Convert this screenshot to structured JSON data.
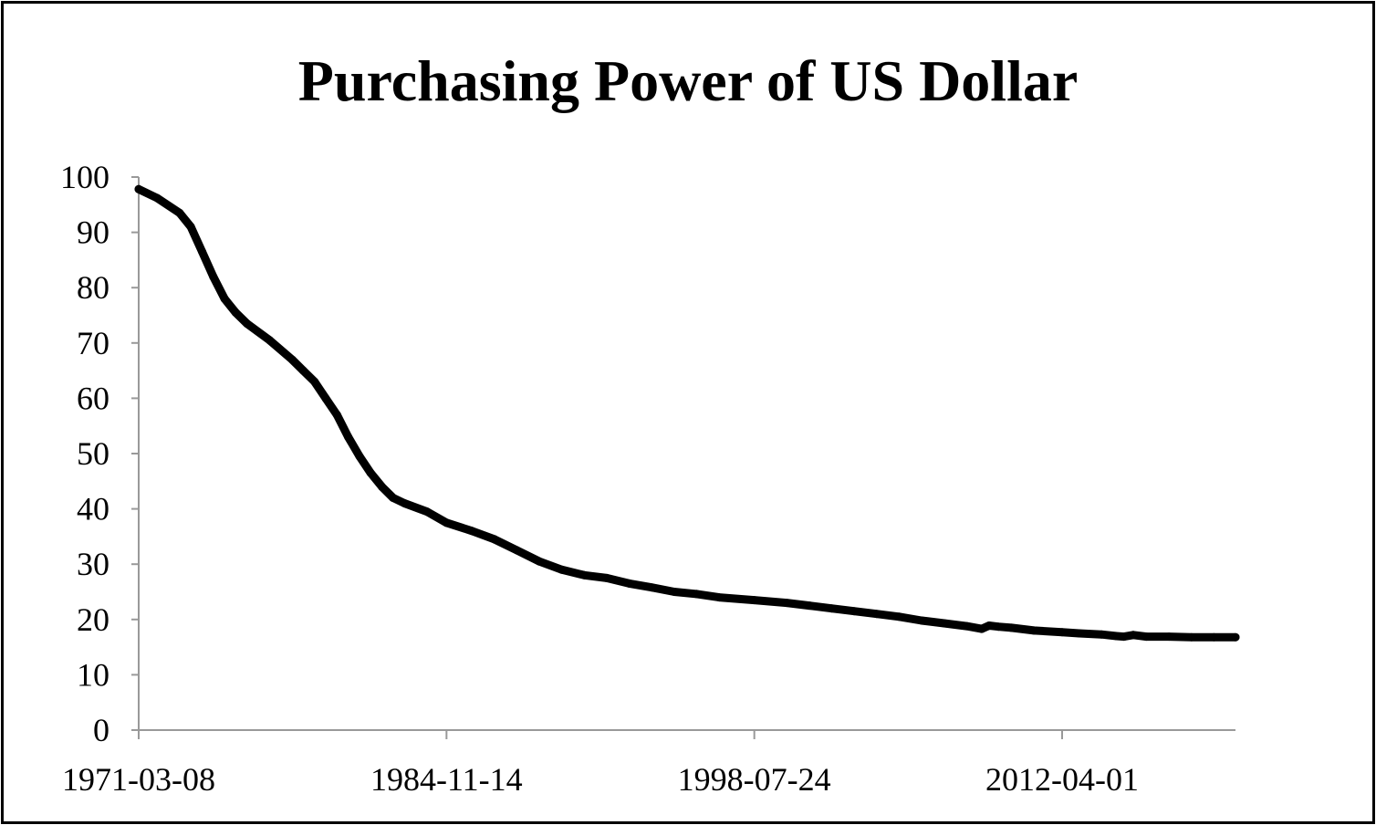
{
  "chart_data": {
    "type": "line",
    "title": "Purchasing Power of US Dollar",
    "xlabel": "",
    "ylabel": "",
    "x_scale": "date",
    "xlim": [
      "1971-03-08",
      "2019-12-17"
    ],
    "ylim": [
      0,
      100
    ],
    "y_ticks": [
      0,
      10,
      20,
      30,
      40,
      50,
      60,
      70,
      80,
      90,
      100
    ],
    "x_ticks": [
      "1971-03-08",
      "1984-11-14",
      "1998-07-24",
      "2012-04-01"
    ],
    "grid": false,
    "legend": "none",
    "line_color": "#000000",
    "axis_color": "#999999",
    "series": [
      {
        "x": [
          "1971-03-08",
          "1972-01-01",
          "1973-01-01",
          "1973-07-01",
          "1974-01-01",
          "1974-07-01",
          "1975-01-01",
          "1975-07-01",
          "1976-01-01",
          "1977-01-01",
          "1978-01-01",
          "1978-07-01",
          "1979-01-01",
          "1979-07-01",
          "1980-01-01",
          "1980-07-01",
          "1981-01-01",
          "1981-07-01",
          "1982-01-01",
          "1982-07-01",
          "1983-01-01",
          "1984-01-01",
          "1984-11-14",
          "1986-01-01",
          "1987-01-01",
          "1988-01-01",
          "1989-01-01",
          "1990-01-01",
          "1991-01-01",
          "1992-01-01",
          "1993-01-01",
          "1994-01-01",
          "1995-01-01",
          "1996-01-01",
          "1997-01-01",
          "1998-07-24",
          "2000-01-01",
          "2001-01-01",
          "2002-01-01",
          "2003-01-01",
          "2004-01-01",
          "2005-01-01",
          "2006-01-01",
          "2007-01-01",
          "2008-01-01",
          "2008-09-01",
          "2009-01-01",
          "2009-06-01",
          "2010-01-01",
          "2011-01-01",
          "2012-04-01",
          "2013-01-01",
          "2014-01-01",
          "2014-09-01",
          "2015-01-01",
          "2015-06-01",
          "2016-01-01",
          "2017-01-01",
          "2018-01-01",
          "2019-01-01",
          "2019-12-17"
        ],
        "values": [
          97.8,
          96.2,
          93.5,
          91,
          86.5,
          82,
          78,
          75.5,
          73.5,
          70.5,
          67,
          65,
          63,
          60,
          57,
          53,
          49.5,
          46.5,
          44,
          42,
          41,
          39.5,
          37.5,
          36,
          34.5,
          32.5,
          30.5,
          29,
          28,
          27.5,
          26.5,
          25.8,
          25,
          24.6,
          24,
          23.5,
          23,
          22.5,
          22,
          21.5,
          21,
          20.5,
          19.8,
          19.3,
          18.8,
          18.3,
          18.9,
          18.7,
          18.5,
          18,
          17.7,
          17.5,
          17.3,
          17,
          16.9,
          17.2,
          16.9,
          16.9,
          16.8,
          16.8,
          16.8
        ]
      }
    ]
  }
}
